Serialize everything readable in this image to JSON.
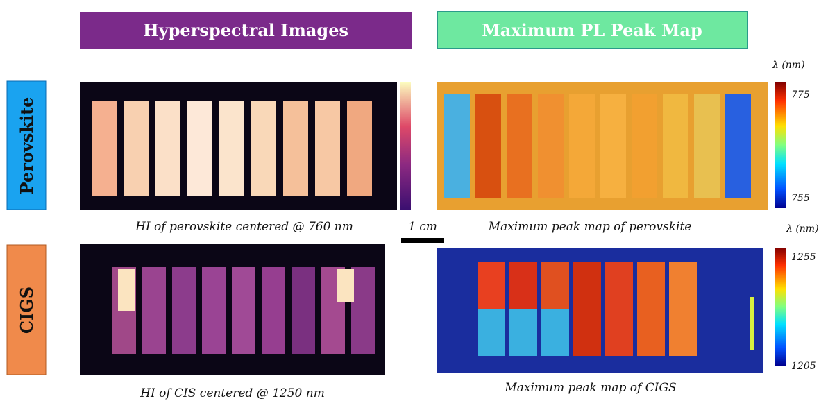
{
  "headers": [
    "Hyperspectral Images",
    "Maximum PL Peak Map"
  ],
  "rows": [
    "Perovskite",
    "CIGS"
  ],
  "captions": [
    "HI of perovskite centered @ 760 nm",
    "Maximum peak map of perovskite",
    "HI of CIS centered @ 1250 nm",
    "Maximum peak map of CIGS"
  ],
  "scale_bar": "1 cm",
  "colorbars": [
    {
      "label": "λ (nm)",
      "max": 775,
      "min": 755
    },
    {
      "label": "λ (nm)",
      "max": 1255,
      "min": 1205
    }
  ]
}
